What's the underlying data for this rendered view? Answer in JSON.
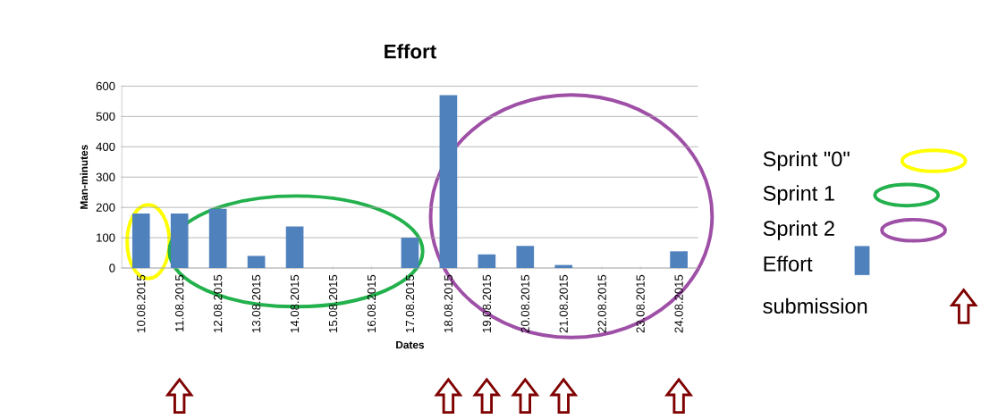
{
  "chart_data": {
    "type": "bar",
    "title": "Effort",
    "xlabel": "Dates",
    "ylabel": "Man-minutes",
    "categories": [
      "10.08.2015",
      "11.08.2015",
      "12.08.2015",
      "13.08.2015",
      "14.08.2015",
      "15.08.2015",
      "16.08.2015",
      "17.08.2015",
      "18.08.2015",
      "19.08.2015",
      "20.08.2015",
      "21.08.2015",
      "22.08.2015",
      "23.08.2015",
      "24.08.2015"
    ],
    "series": [
      {
        "name": "Effort",
        "color": "#4f81bd",
        "values": [
          180,
          180,
          195,
          40,
          137,
          0,
          0,
          100,
          570,
          45,
          73,
          10,
          0,
          0,
          55
        ]
      }
    ],
    "ylim": [
      0,
      600
    ],
    "yticks": [
      0,
      100,
      200,
      300,
      400,
      500,
      600
    ],
    "grid": "y",
    "legend": "right",
    "annotations": [
      "Sprint \"0\"",
      "Sprint 1",
      "Sprint 2",
      "submission"
    ]
  }
}
